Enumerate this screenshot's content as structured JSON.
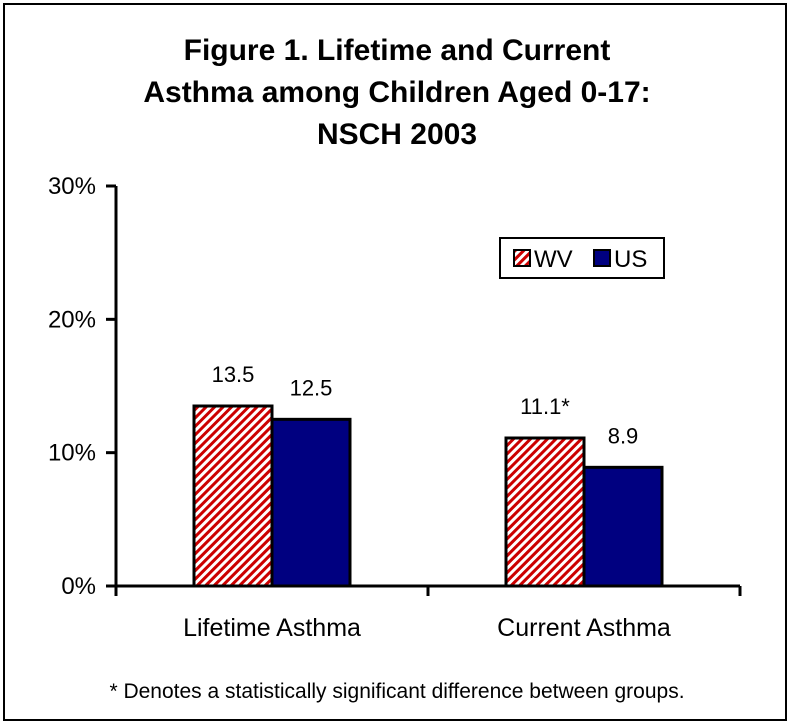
{
  "title_lines": [
    "Figure 1.  Lifetime and Current",
    "Asthma among Children Aged 0-17:",
    "NSCH 2003"
  ],
  "footnote": "* Denotes a statistically significant difference between groups.",
  "chart_data": {
    "type": "bar",
    "title": "Figure 1.  Lifetime and Current Asthma among Children Aged 0-17: NSCH 2003",
    "categories": [
      "Lifetime Asthma",
      "Current Asthma"
    ],
    "series": [
      {
        "name": "WV",
        "values": [
          13.5,
          11.1
        ],
        "labels": [
          "13.5",
          "11.1*"
        ],
        "color": "#cc0000",
        "pattern": "diagonal-hatch"
      },
      {
        "name": "US",
        "values": [
          12.5,
          8.9
        ],
        "labels": [
          "12.5",
          "8.9"
        ],
        "color": "#000080",
        "pattern": "solid"
      }
    ],
    "ylim": [
      0,
      30
    ],
    "yticks": [
      0,
      10,
      20,
      30
    ],
    "ytick_labels": [
      "0%",
      "10%",
      "20%",
      "30%"
    ],
    "xlabel": "",
    "ylabel": "",
    "grid": false,
    "legend": "top-right"
  }
}
